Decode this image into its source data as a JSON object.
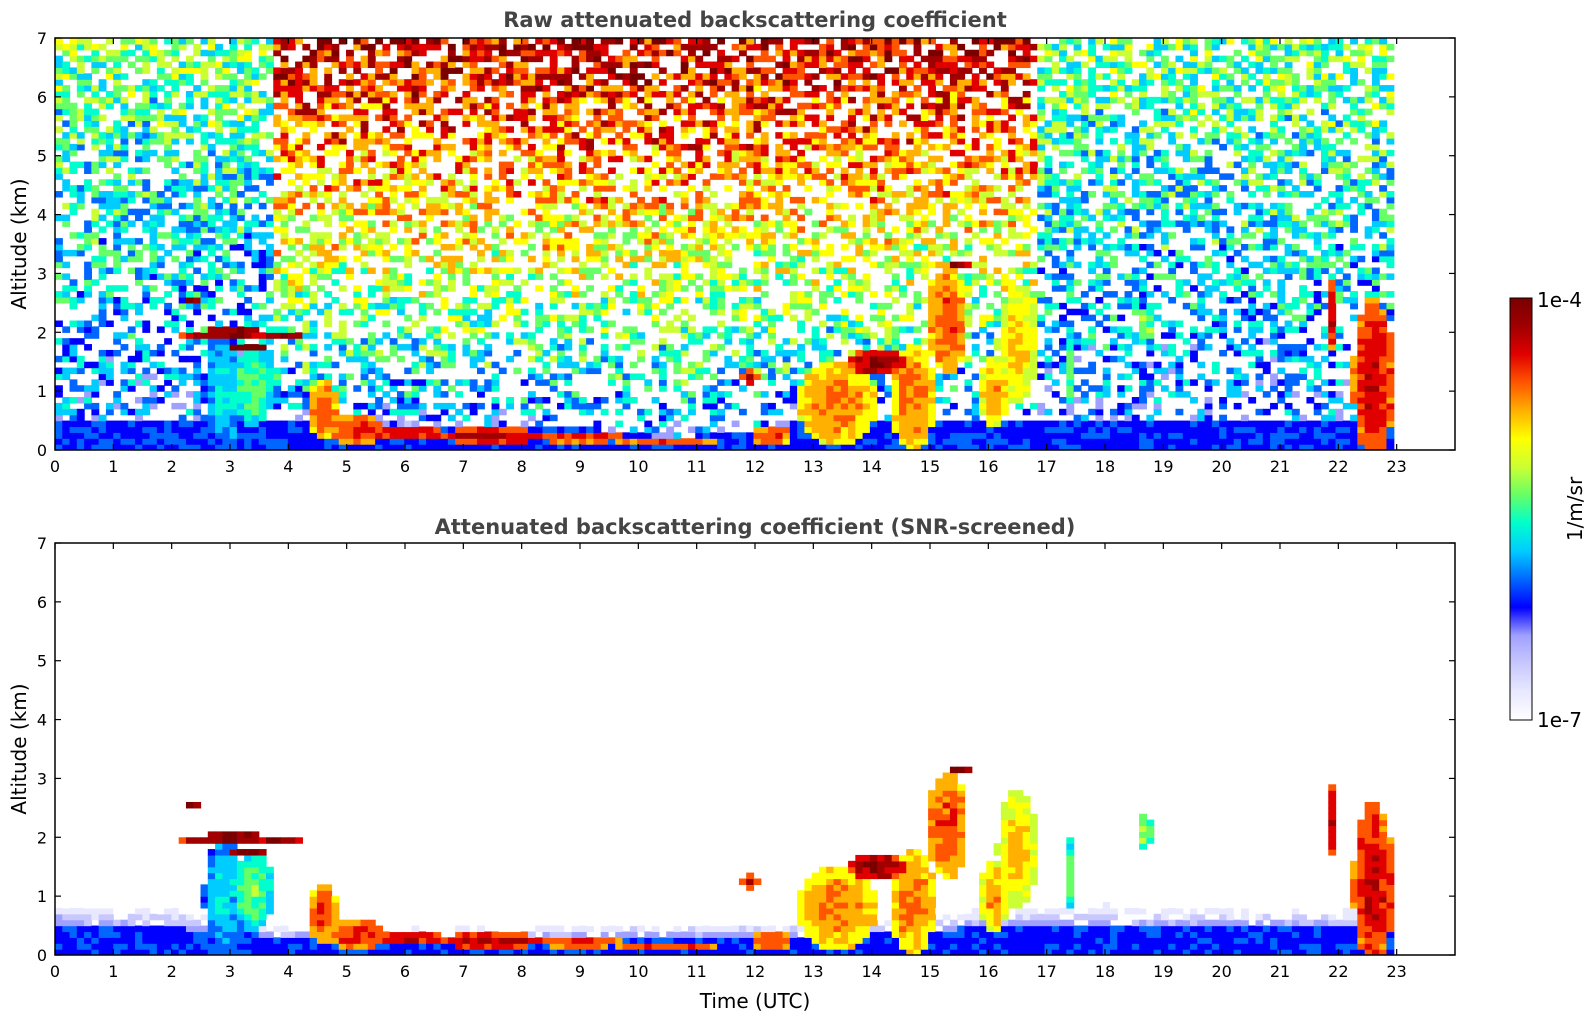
{
  "figure": {
    "colors": {
      "title": "#444444",
      "axis": "#000000",
      "background": "#ffffff",
      "colormap": [
        "#ffffff",
        "#e8e8ff",
        "#c8c8ff",
        "#a0a0ff",
        "#0000ff",
        "#0066ff",
        "#00ccff",
        "#00ffcc",
        "#66ff66",
        "#ccff33",
        "#ffff00",
        "#ffb000",
        "#ff5500",
        "#e00000",
        "#a00000",
        "#7a0000"
      ]
    },
    "colorbar": {
      "max_label": "1e-4",
      "min_label": "1e-7",
      "unit_label": "1/m/sr",
      "scale": "log",
      "range": [
        1e-07,
        0.0001
      ]
    },
    "xlabel": "Time (UTC)"
  },
  "chart_data": [
    {
      "type": "heatmap",
      "title": "Raw attenuated backscattering coefficient",
      "xlabel": "",
      "ylabel": "Altitude (km)",
      "xlim": [
        0,
        24
      ],
      "ylim": [
        0,
        7
      ],
      "xticks": [
        "0",
        "1",
        "2",
        "3",
        "4",
        "5",
        "6",
        "7",
        "8",
        "9",
        "10",
        "11",
        "12",
        "13",
        "14",
        "15",
        "16",
        "17",
        "18",
        "19",
        "20",
        "21",
        "22",
        "23"
      ],
      "yticks": [
        "0",
        "1",
        "2",
        "3",
        "4",
        "5",
        "6",
        "7"
      ],
      "data_end_time": 22.95,
      "noise_log_by_period": [
        {
          "from": 0,
          "to": 3.8,
          "log_at_top": -5.4
        },
        {
          "from": 3.8,
          "to": 16.8,
          "log_at_top": -4.4
        },
        {
          "from": 16.8,
          "to": 22.95,
          "log_at_top": -5.4
        }
      ],
      "boundary_layer_top_km": [
        [
          0,
          0.45
        ],
        [
          4.5,
          0.5
        ],
        [
          5.5,
          0.45
        ],
        [
          7,
          0.4
        ],
        [
          9,
          0.35
        ],
        [
          10,
          0.25
        ],
        [
          11,
          0.25
        ],
        [
          12,
          0.3
        ],
        [
          13,
          0.55
        ],
        [
          16,
          0.5
        ],
        [
          22,
          0.5
        ],
        [
          22.95,
          0.5
        ]
      ],
      "features": [
        {
          "t": 2.35,
          "z": 2.55,
          "dt": 0.15,
          "dz": 0.05,
          "log": -4.1
        },
        {
          "t": 2.6,
          "z": 1.98,
          "dt": 0.5,
          "dz": 0.07,
          "log": -4.2
        },
        {
          "t": 3.05,
          "z": 2.0,
          "dt": 0.5,
          "dz": 0.1,
          "log": -4.05
        },
        {
          "t": 3.3,
          "z": 1.75,
          "dt": 0.35,
          "dz": 0.08,
          "log": -4.1
        },
        {
          "t": 3.85,
          "z": 1.95,
          "dt": 0.35,
          "dz": 0.1,
          "log": -4.15
        },
        {
          "t": 2.9,
          "z": 1.0,
          "dt": 0.35,
          "dz": 1.0,
          "log": -5.7
        },
        {
          "t": 3.4,
          "z": 1.1,
          "dt": 0.35,
          "dz": 0.7,
          "log": -5.4
        },
        {
          "t": 4.6,
          "z": 0.7,
          "dt": 0.25,
          "dz": 0.55,
          "log": -4.6
        },
        {
          "t": 5.2,
          "z": 0.35,
          "dt": 0.5,
          "dz": 0.25,
          "log": -4.5
        },
        {
          "t": 6.0,
          "z": 0.3,
          "dt": 0.7,
          "dz": 0.15,
          "log": -4.4
        },
        {
          "t": 7.5,
          "z": 0.25,
          "dt": 1.0,
          "dz": 0.13,
          "log": -4.3
        },
        {
          "t": 9.0,
          "z": 0.22,
          "dt": 0.7,
          "dz": 0.1,
          "log": -4.5
        },
        {
          "t": 10.5,
          "z": 0.18,
          "dt": 1.0,
          "dz": 0.06,
          "log": -4.5
        },
        {
          "t": 11.9,
          "z": 1.25,
          "dt": 0.15,
          "dz": 0.15,
          "log": -4.4
        },
        {
          "t": 12.3,
          "z": 0.25,
          "dt": 0.35,
          "dz": 0.2,
          "log": -4.6
        },
        {
          "t": 13.4,
          "z": 0.8,
          "dt": 0.7,
          "dz": 0.7,
          "log": -4.7
        },
        {
          "t": 14.1,
          "z": 1.5,
          "dt": 0.5,
          "dz": 0.2,
          "log": -4.2
        },
        {
          "t": 14.7,
          "z": 0.9,
          "dt": 0.4,
          "dz": 0.9,
          "log": -4.7
        },
        {
          "t": 15.3,
          "z": 2.2,
          "dt": 0.35,
          "dz": 0.9,
          "log": -4.6
        },
        {
          "t": 15.5,
          "z": 3.15,
          "dt": 0.2,
          "dz": 0.1,
          "log": -4.1
        },
        {
          "t": 16.1,
          "z": 1.0,
          "dt": 0.25,
          "dz": 0.6,
          "log": -4.8
        },
        {
          "t": 16.5,
          "z": 1.8,
          "dt": 0.35,
          "dz": 1.0,
          "log": -4.9
        },
        {
          "t": 17.4,
          "z": 1.4,
          "dt": 0.1,
          "dz": 0.6,
          "log": -5.4
        },
        {
          "t": 18.7,
          "z": 2.1,
          "dt": 0.1,
          "dz": 0.3,
          "log": -5.2
        },
        {
          "t": 21.9,
          "z": 2.3,
          "dt": 0.1,
          "dz": 0.6,
          "log": -4.4
        },
        {
          "t": 22.6,
          "z": 1.2,
          "dt": 0.35,
          "dz": 1.4,
          "log": -4.4
        }
      ]
    },
    {
      "type": "heatmap",
      "title": "Attenuated backscattering coefficient (SNR-screened)",
      "xlabel": "Time (UTC)",
      "ylabel": "Altitude (km)",
      "xlim": [
        0,
        24
      ],
      "ylim": [
        0,
        7
      ],
      "xticks": [
        "0",
        "1",
        "2",
        "3",
        "4",
        "5",
        "6",
        "7",
        "8",
        "9",
        "10",
        "11",
        "12",
        "13",
        "14",
        "15",
        "16",
        "17",
        "18",
        "19",
        "20",
        "21",
        "22",
        "23"
      ],
      "yticks": [
        "0",
        "1",
        "2",
        "3",
        "4",
        "5",
        "6",
        "7"
      ],
      "data_end_time": 22.95,
      "screened_background_top_km": [
        [
          0,
          0.95
        ],
        [
          2,
          0.85
        ],
        [
          4.5,
          0.5
        ],
        [
          13,
          0.6
        ],
        [
          17,
          0.95
        ],
        [
          22,
          0.85
        ],
        [
          22.95,
          0.8
        ]
      ],
      "features": [
        {
          "t": 2.35,
          "z": 2.55,
          "dt": 0.15,
          "dz": 0.05,
          "log": -4.1
        },
        {
          "t": 2.6,
          "z": 1.98,
          "dt": 0.5,
          "dz": 0.07,
          "log": -4.2
        },
        {
          "t": 3.05,
          "z": 2.0,
          "dt": 0.5,
          "dz": 0.1,
          "log": -4.05
        },
        {
          "t": 3.3,
          "z": 1.75,
          "dt": 0.35,
          "dz": 0.08,
          "log": -4.1
        },
        {
          "t": 3.85,
          "z": 1.95,
          "dt": 0.35,
          "dz": 0.1,
          "log": -4.15
        },
        {
          "t": 2.9,
          "z": 1.0,
          "dt": 0.35,
          "dz": 1.0,
          "log": -5.7
        },
        {
          "t": 3.4,
          "z": 1.1,
          "dt": 0.35,
          "dz": 0.7,
          "log": -5.4
        },
        {
          "t": 4.6,
          "z": 0.7,
          "dt": 0.25,
          "dz": 0.55,
          "log": -4.6
        },
        {
          "t": 5.2,
          "z": 0.35,
          "dt": 0.5,
          "dz": 0.25,
          "log": -4.5
        },
        {
          "t": 6.0,
          "z": 0.3,
          "dt": 0.7,
          "dz": 0.15,
          "log": -4.4
        },
        {
          "t": 7.5,
          "z": 0.25,
          "dt": 1.0,
          "dz": 0.13,
          "log": -4.3
        },
        {
          "t": 9.0,
          "z": 0.22,
          "dt": 0.7,
          "dz": 0.1,
          "log": -4.5
        },
        {
          "t": 10.5,
          "z": 0.18,
          "dt": 1.0,
          "dz": 0.06,
          "log": -4.5
        },
        {
          "t": 11.9,
          "z": 1.25,
          "dt": 0.15,
          "dz": 0.15,
          "log": -4.4
        },
        {
          "t": 12.3,
          "z": 0.25,
          "dt": 0.35,
          "dz": 0.2,
          "log": -4.6
        },
        {
          "t": 13.4,
          "z": 0.8,
          "dt": 0.7,
          "dz": 0.7,
          "log": -4.7
        },
        {
          "t": 14.1,
          "z": 1.5,
          "dt": 0.5,
          "dz": 0.2,
          "log": -4.2
        },
        {
          "t": 14.7,
          "z": 0.9,
          "dt": 0.4,
          "dz": 0.9,
          "log": -4.7
        },
        {
          "t": 15.3,
          "z": 2.2,
          "dt": 0.35,
          "dz": 0.9,
          "log": -4.6
        },
        {
          "t": 15.5,
          "z": 3.15,
          "dt": 0.2,
          "dz": 0.1,
          "log": -4.1
        },
        {
          "t": 16.1,
          "z": 1.0,
          "dt": 0.25,
          "dz": 0.6,
          "log": -4.8
        },
        {
          "t": 16.5,
          "z": 1.8,
          "dt": 0.35,
          "dz": 1.0,
          "log": -4.9
        },
        {
          "t": 17.4,
          "z": 1.4,
          "dt": 0.1,
          "dz": 0.6,
          "log": -5.4
        },
        {
          "t": 18.7,
          "z": 2.1,
          "dt": 0.1,
          "dz": 0.3,
          "log": -5.2
        },
        {
          "t": 21.9,
          "z": 2.3,
          "dt": 0.1,
          "dz": 0.6,
          "log": -4.4
        },
        {
          "t": 22.6,
          "z": 1.2,
          "dt": 0.35,
          "dz": 1.4,
          "log": -4.4
        }
      ]
    }
  ]
}
